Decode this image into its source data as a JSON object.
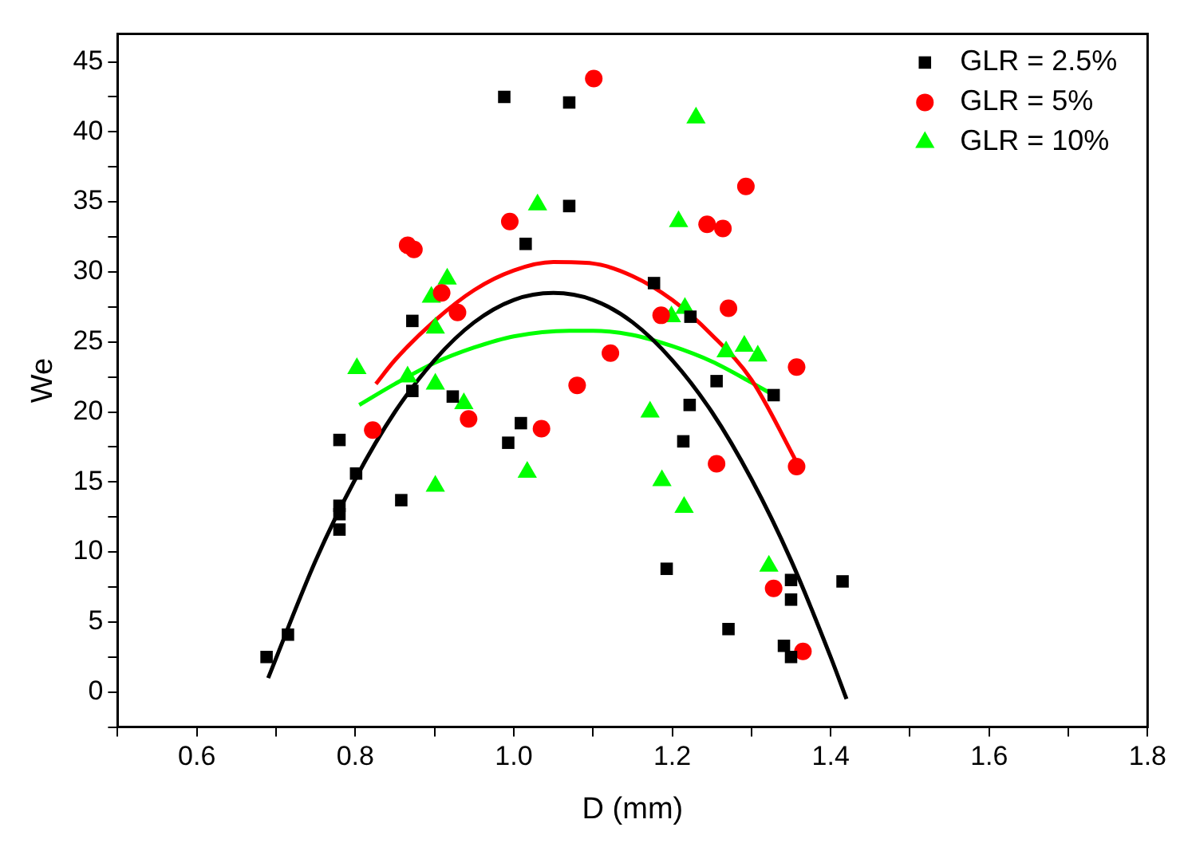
{
  "chart_data": {
    "type": "scatter",
    "xlabel": "D (mm)",
    "ylabel": "We",
    "xlim": [
      0.5,
      1.8
    ],
    "ylim": [
      -2.5,
      47
    ],
    "xticks": [
      {
        "value": 0.5,
        "label": null
      },
      0.6,
      {
        "value": 0.7,
        "label": null
      },
      0.8,
      {
        "value": 0.9,
        "label": null
      },
      {
        "value": 1.0,
        "label": "1.0"
      },
      {
        "value": 1.1,
        "label": null
      },
      1.2,
      {
        "value": 1.3,
        "label": null
      },
      1.4,
      {
        "value": 1.5,
        "label": null
      },
      1.6,
      {
        "value": 1.7,
        "label": null
      },
      1.8
    ],
    "yticks": [
      {
        "value": -2.5,
        "label": null
      },
      0,
      {
        "value": 2.5,
        "label": null
      },
      5,
      {
        "value": 7.5,
        "label": null
      },
      10,
      {
        "value": 12.5,
        "label": null
      },
      15,
      {
        "value": 17.5,
        "label": null
      },
      20,
      {
        "value": 22.5,
        "label": null
      },
      25,
      {
        "value": 27.5,
        "label": null
      },
      30,
      {
        "value": 32.5,
        "label": null
      },
      35,
      {
        "value": 37.5,
        "label": null
      },
      40,
      {
        "value": 42.5,
        "label": null
      },
      45
    ],
    "grid": false,
    "legend": "top right",
    "series": [
      {
        "name": "GLR = 2.5%",
        "marker": "square",
        "color": "#000000",
        "x": [
          0.688,
          0.715,
          0.78,
          0.78,
          0.78,
          0.78,
          0.801,
          0.858,
          0.872,
          0.872,
          0.923,
          0.988,
          0.993,
          1.009,
          1.015,
          1.07,
          1.07,
          1.177,
          1.223,
          1.256,
          1.222,
          1.214,
          1.193,
          1.271,
          1.328,
          1.35,
          1.35,
          1.341,
          1.35,
          1.415
        ],
        "values": [
          2.5,
          4.1,
          18.0,
          13.3,
          12.7,
          11.6,
          15.6,
          13.7,
          26.5,
          21.5,
          21.1,
          42.5,
          17.8,
          19.2,
          32.0,
          42.1,
          34.7,
          29.2,
          26.8,
          22.2,
          20.5,
          17.9,
          8.8,
          4.5,
          21.2,
          8.0,
          6.6,
          3.3,
          2.5,
          7.9
        ]
      },
      {
        "name": "GLR = 5%",
        "marker": "circle",
        "color": "#ff0000",
        "x": [
          0.822,
          0.866,
          0.874,
          0.909,
          0.929,
          0.943,
          0.995,
          1.035,
          1.08,
          1.101,
          1.122,
          1.186,
          1.244,
          1.264,
          1.271,
          1.293,
          1.256,
          1.357,
          1.357,
          1.328,
          1.365
        ],
        "values": [
          18.7,
          31.9,
          31.6,
          28.5,
          27.1,
          19.5,
          33.6,
          18.8,
          21.9,
          43.8,
          24.2,
          26.9,
          33.4,
          33.1,
          27.4,
          36.1,
          16.3,
          23.2,
          16.1,
          7.4,
          2.9
        ]
      },
      {
        "name": "GLR = 10%",
        "marker": "triangle",
        "color": "#00ff00",
        "x": [
          0.802,
          0.866,
          0.896,
          0.916,
          0.901,
          0.901,
          0.937,
          0.901,
          1.017,
          1.03,
          1.23,
          1.208,
          1.216,
          1.199,
          1.268,
          1.291,
          1.308,
          1.172,
          1.187,
          1.215,
          1.322
        ],
        "values": [
          23.1,
          22.5,
          28.2,
          29.5,
          26.0,
          22.0,
          20.6,
          14.7,
          15.7,
          34.8,
          41.0,
          33.6,
          27.4,
          26.8,
          24.3,
          24.7,
          24.0,
          20.0,
          15.1,
          13.2,
          9.0
        ]
      },
      {
        "type": "line",
        "marker": "none",
        "color": "#000000",
        "x": [
          0.69,
          0.75,
          0.8,
          0.85,
          0.9,
          0.95,
          1.0,
          1.05,
          1.1,
          1.15,
          1.2,
          1.25,
          1.3,
          1.35,
          1.4,
          1.42
        ],
        "values": [
          1.0,
          9.4,
          15.2,
          20.0,
          23.7,
          26.4,
          28.0,
          28.5,
          28.0,
          26.4,
          23.7,
          20.0,
          15.2,
          9.4,
          2.5,
          -0.5
        ]
      },
      {
        "type": "line",
        "marker": "none",
        "color": "#ff0000",
        "x": [
          0.826,
          0.85,
          0.9,
          0.95,
          1.0,
          1.05,
          1.1,
          1.15,
          1.2,
          1.25,
          1.3,
          1.36
        ],
        "values": [
          22.0,
          23.7,
          26.5,
          28.7,
          30.1,
          30.7,
          30.6,
          29.7,
          28.0,
          25.5,
          22.3,
          16.1
        ]
      },
      {
        "type": "line",
        "marker": "none",
        "color": "#00ff00",
        "x": [
          0.805,
          0.85,
          0.9,
          0.95,
          1.0,
          1.07,
          1.1,
          1.15,
          1.2,
          1.25,
          1.3,
          1.325
        ],
        "values": [
          20.5,
          22.0,
          23.5,
          24.6,
          25.4,
          25.8,
          25.8,
          25.5,
          24.7,
          23.6,
          22.1,
          21.3
        ]
      }
    ]
  }
}
